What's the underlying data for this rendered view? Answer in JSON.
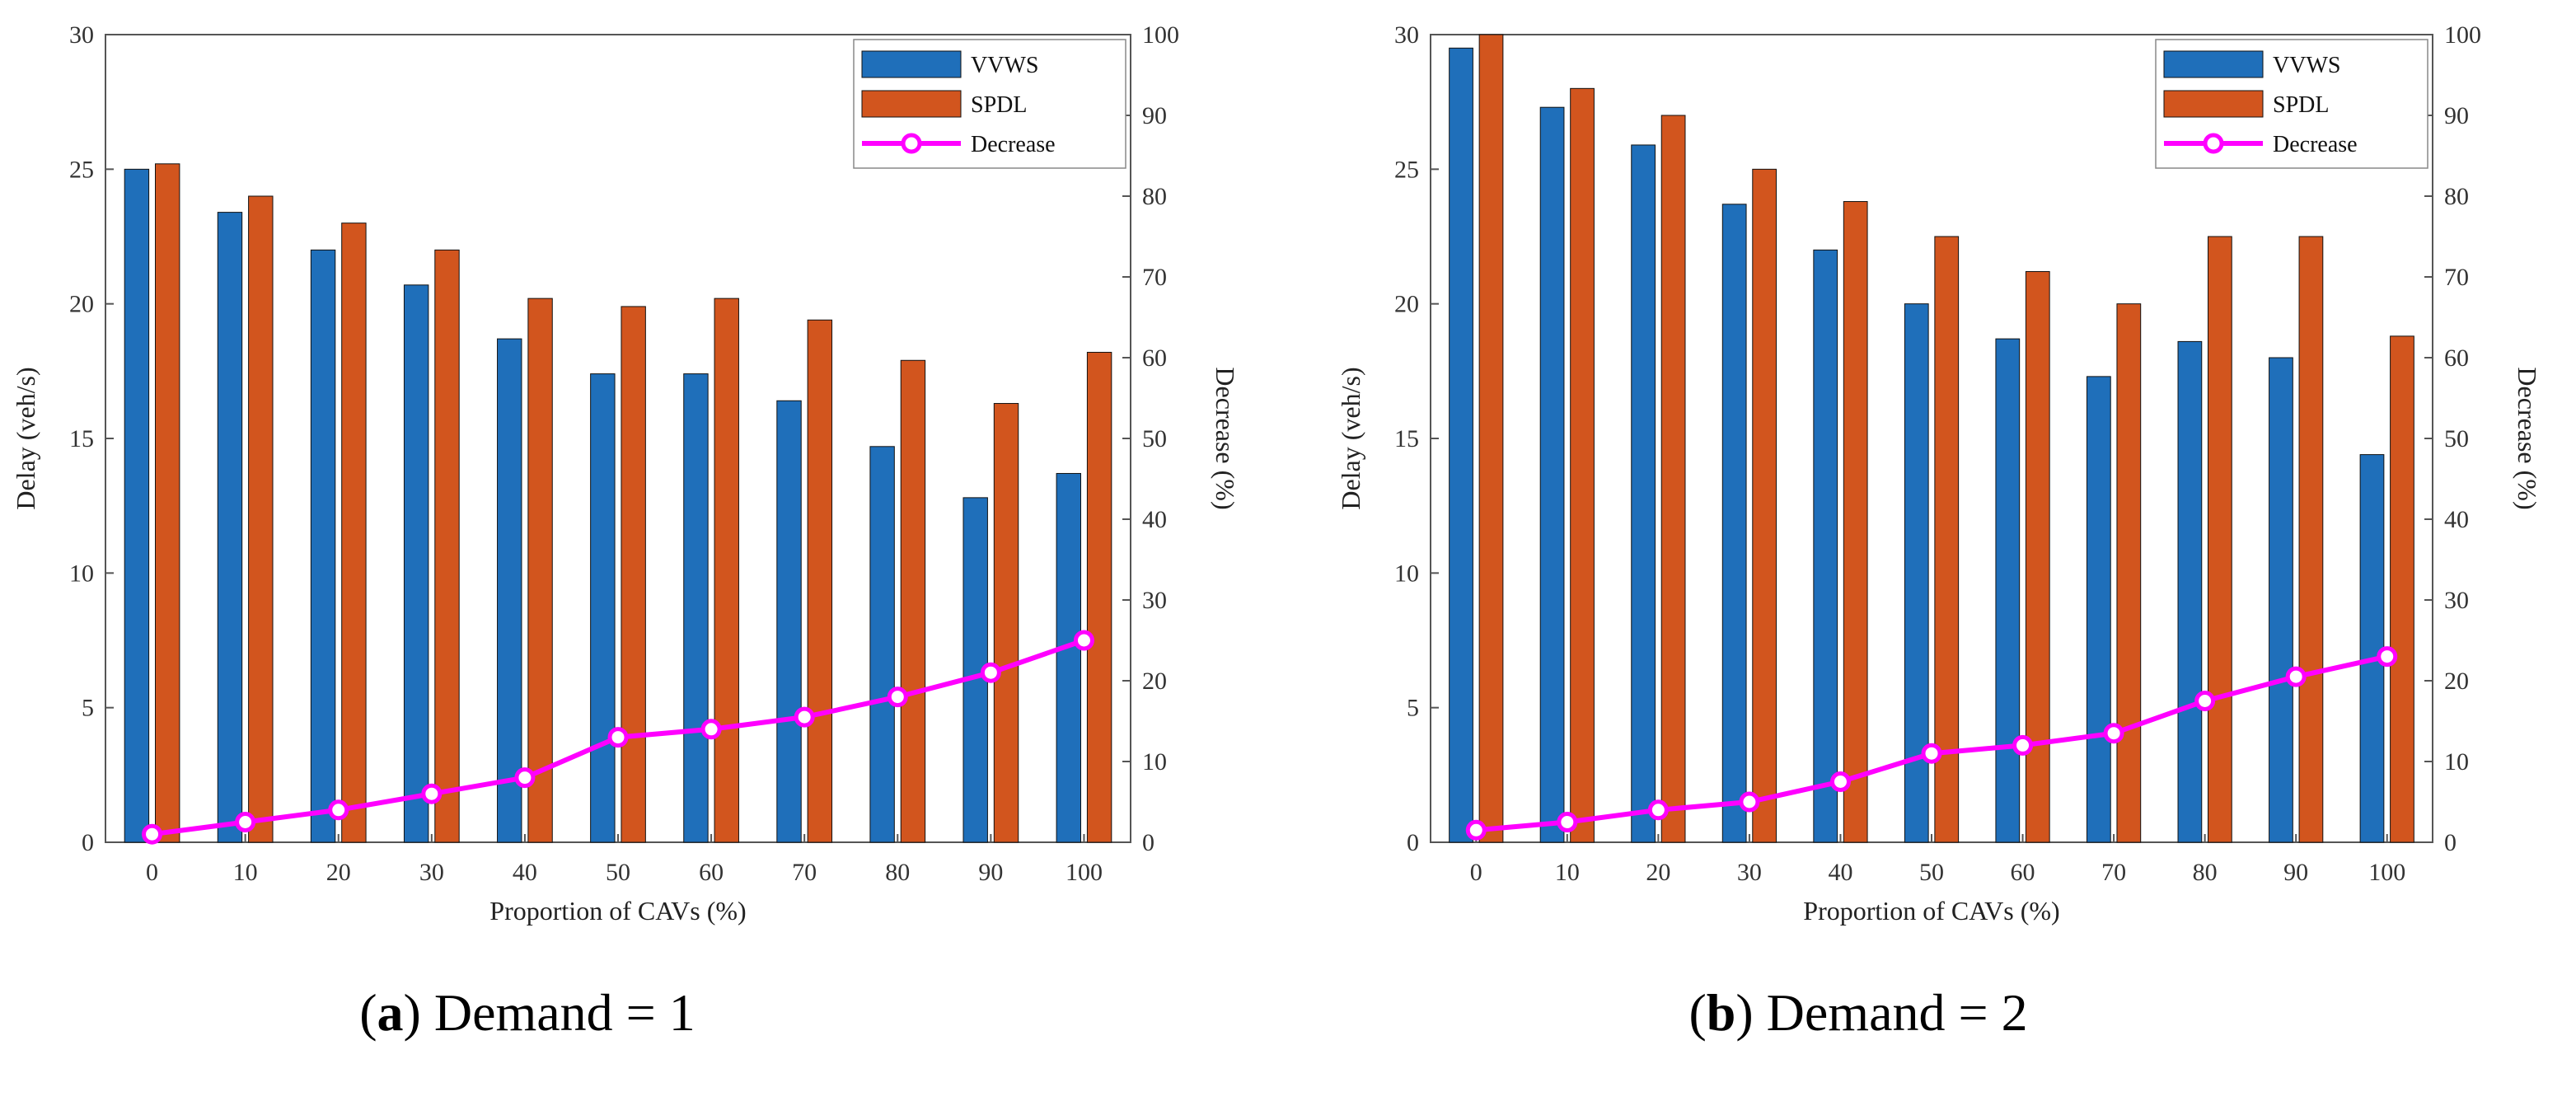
{
  "figure": {
    "caption_a": {
      "open": "(",
      "letter": "a",
      "close": ") Demand = 1"
    },
    "caption_b": {
      "open": "(",
      "letter": "b",
      "close": ") Demand = 2"
    }
  },
  "colors": {
    "vvws": "#1f6fba",
    "spdl": "#d2551e",
    "decrease": "#ff00ff",
    "decrease_marker_fill": "#ffffff",
    "grid": "#dddddd",
    "axis": "#555555"
  },
  "chart_data": [
    {
      "type": "bar",
      "title": "Demand = 1",
      "categories": [
        "0",
        "10",
        "20",
        "30",
        "40",
        "50",
        "60",
        "70",
        "80",
        "90",
        "100"
      ],
      "xlabel": "Proportion of CAVs (%)",
      "ylabel": "Delay (veh/s)",
      "ylabel_right": "Decrease (%)",
      "ylim": [
        0,
        30
      ],
      "yticks": [
        0,
        5,
        10,
        15,
        20,
        25,
        30
      ],
      "ylim_right": [
        0,
        100
      ],
      "yticks_right": [
        0,
        10,
        20,
        30,
        40,
        50,
        60,
        70,
        80,
        90,
        100
      ],
      "grid": false,
      "legend_position": "top-right",
      "series": [
        {
          "name": "VVWS",
          "axis": "left",
          "kind": "bar",
          "values": [
            25.0,
            23.4,
            22.0,
            20.7,
            18.7,
            17.4,
            17.4,
            16.4,
            14.7,
            12.8,
            13.7
          ]
        },
        {
          "name": "SPDL",
          "axis": "left",
          "kind": "bar",
          "values": [
            25.2,
            24.0,
            23.0,
            22.0,
            20.2,
            19.9,
            20.2,
            19.4,
            17.9,
            16.3,
            18.2
          ]
        },
        {
          "name": "Decrease",
          "axis": "right",
          "kind": "line",
          "values": [
            1.0,
            2.5,
            4.0,
            6.0,
            8.0,
            13.0,
            14.0,
            15.5,
            18.0,
            21.0,
            25.0
          ]
        }
      ]
    },
    {
      "type": "bar",
      "title": "Demand = 2",
      "categories": [
        "0",
        "10",
        "20",
        "30",
        "40",
        "50",
        "60",
        "70",
        "80",
        "90",
        "100"
      ],
      "xlabel": "Proportion of CAVs (%)",
      "ylabel": "Delay (veh/s)",
      "ylabel_right": "Decrease (%)",
      "ylim": [
        0,
        30
      ],
      "yticks": [
        0,
        5,
        10,
        15,
        20,
        25,
        30
      ],
      "ylim_right": [
        0,
        100
      ],
      "yticks_right": [
        0,
        10,
        20,
        30,
        40,
        50,
        60,
        70,
        80,
        90,
        100
      ],
      "grid": false,
      "legend_position": "top-right",
      "series": [
        {
          "name": "VVWS",
          "axis": "left",
          "kind": "bar",
          "values": [
            29.5,
            27.3,
            25.9,
            23.7,
            22.0,
            20.0,
            18.7,
            17.3,
            18.6,
            18.0,
            14.4
          ]
        },
        {
          "name": "SPDL",
          "axis": "left",
          "kind": "bar",
          "values": [
            30.0,
            28.0,
            27.0,
            25.0,
            23.8,
            22.5,
            21.2,
            20.0,
            22.5,
            22.5,
            18.8
          ]
        },
        {
          "name": "Decrease",
          "axis": "right",
          "kind": "line",
          "values": [
            1.5,
            2.5,
            4.0,
            5.0,
            7.5,
            11.0,
            12.0,
            13.5,
            17.5,
            20.5,
            23.0
          ]
        }
      ]
    }
  ]
}
